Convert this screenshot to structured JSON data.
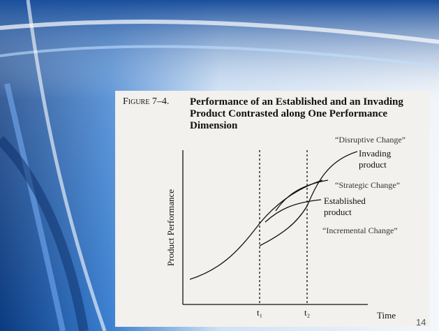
{
  "slide": {
    "figure_label": "Figure 7–4.",
    "figure_title": "Performance of an Established and an Invading Product Contrasted along One Performance Dimension",
    "page_number": "14"
  },
  "diagram": {
    "y_axis_label": "Product Performance",
    "x_axis_label": "Time",
    "time_markers": [
      "t₁",
      "t₂"
    ],
    "curve_labels": [
      "Invading product",
      "Established product"
    ],
    "change_labels": [
      "“Disruptive Change”",
      "“Strategic Change”",
      "“Incremental Change”"
    ]
  }
}
